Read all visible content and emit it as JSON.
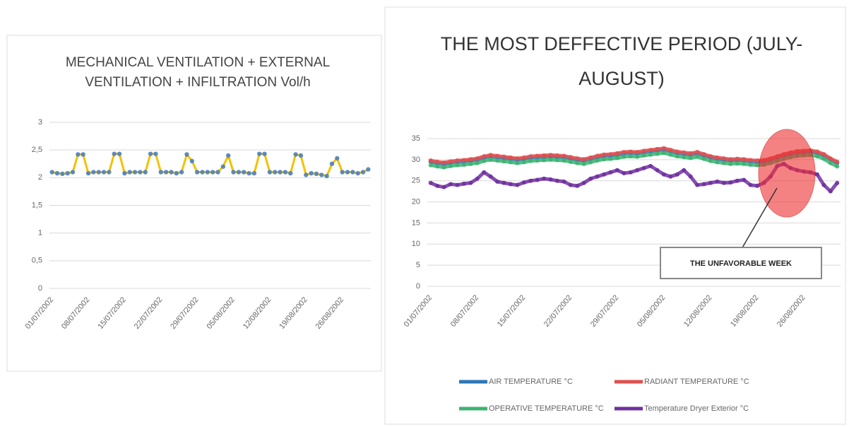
{
  "chart_data": [
    {
      "type": "line",
      "title": "MECHANICAL VENTILATION + EXTERNAL VENTILATION + INFILTRATION Vol/h",
      "categories": [
        "01/07/2002",
        null,
        null,
        null,
        null,
        null,
        null,
        "08/07/2002",
        null,
        null,
        null,
        null,
        null,
        null,
        "15/07/2002",
        null,
        null,
        null,
        null,
        null,
        null,
        "22/07/2002",
        null,
        null,
        null,
        null,
        null,
        null,
        "29/07/2002",
        null,
        null,
        null,
        null,
        null,
        null,
        "05/08/2002",
        null,
        null,
        null,
        null,
        null,
        null,
        "12/08/2002",
        null,
        null,
        null,
        null,
        null,
        null,
        "19/08/2002",
        null,
        null,
        null,
        null,
        null,
        null,
        "26/08/2002",
        null,
        null,
        null,
        null,
        null
      ],
      "series": [
        {
          "color": "#4f81bd",
          "line_color": "#f2c200",
          "values": [
            2.1,
            2.08,
            2.07,
            2.08,
            2.1,
            2.42,
            2.42,
            2.08,
            2.1,
            2.1,
            2.1,
            2.1,
            2.43,
            2.43,
            2.08,
            2.1,
            2.1,
            2.1,
            2.1,
            2.43,
            2.43,
            2.1,
            2.1,
            2.1,
            2.08,
            2.1,
            2.42,
            2.3,
            2.1,
            2.1,
            2.1,
            2.1,
            2.1,
            2.2,
            2.4,
            2.1,
            2.1,
            2.1,
            2.08,
            2.08,
            2.43,
            2.43,
            2.1,
            2.1,
            2.1,
            2.1,
            2.08,
            2.42,
            2.4,
            2.05,
            2.08,
            2.07,
            2.05,
            2.03,
            2.25,
            2.35,
            2.1,
            2.1,
            2.1,
            2.08,
            2.1,
            2.15
          ]
        }
      ],
      "ylim": [
        0,
        3
      ],
      "yticks": [
        0,
        {
          "value": 0.5,
          "label": "0,5"
        },
        1,
        {
          "value": 1.5,
          "label": "1,5"
        },
        2,
        {
          "value": 2.5,
          "label": "2,5"
        },
        3
      ],
      "grid": true
    },
    {
      "type": "line",
      "title": "THE MOST DEFFECTIVE PERIOD (JULY-AUGUST)",
      "categories": [
        "01/07/2002",
        null,
        null,
        null,
        null,
        null,
        null,
        "08/07/2002",
        null,
        null,
        null,
        null,
        null,
        null,
        "15/07/2002",
        null,
        null,
        null,
        null,
        null,
        null,
        "22/07/2002",
        null,
        null,
        null,
        null,
        null,
        null,
        "29/07/2002",
        null,
        null,
        null,
        null,
        null,
        null,
        "05/08/2002",
        null,
        null,
        null,
        null,
        null,
        null,
        "12/08/2002",
        null,
        null,
        null,
        null,
        null,
        null,
        "19/08/2002",
        null,
        null,
        null,
        null,
        null,
        null,
        "26/08/2002",
        null,
        null,
        null,
        null,
        null
      ],
      "series": [
        {
          "name": "AIR TEMPERATURE °C",
          "color": "#2e75b6",
          "values": [
            29.5,
            29.2,
            29.0,
            29.3,
            29.5,
            29.6,
            29.8,
            30.0,
            30.5,
            30.8,
            30.6,
            30.4,
            30.2,
            30.0,
            30.2,
            30.5,
            30.6,
            30.7,
            30.8,
            30.7,
            30.6,
            30.3,
            30.0,
            29.8,
            30.2,
            30.6,
            30.9,
            31.0,
            31.2,
            31.5,
            31.6,
            31.5,
            31.8,
            32.0,
            32.2,
            32.4,
            32.0,
            31.6,
            31.4,
            31.2,
            31.5,
            31.0,
            30.5,
            30.2,
            30.0,
            29.8,
            29.9,
            29.8,
            29.6,
            29.5,
            29.6,
            30.0,
            30.5,
            31.0,
            31.4,
            31.7,
            31.8,
            31.9,
            31.6,
            31.0,
            30.0,
            29.2
          ]
        },
        {
          "name": "RADIANT TEMPERATURE °C",
          "color": "#e05050",
          "values": [
            29.8,
            29.5,
            29.3,
            29.6,
            29.8,
            29.9,
            30.1,
            30.3,
            30.8,
            31.1,
            30.9,
            30.7,
            30.5,
            30.3,
            30.5,
            30.8,
            30.9,
            31.0,
            31.1,
            31.0,
            30.9,
            30.6,
            30.3,
            30.1,
            30.5,
            30.9,
            31.2,
            31.3,
            31.5,
            31.8,
            31.9,
            31.8,
            32.1,
            32.3,
            32.5,
            32.7,
            32.3,
            31.9,
            31.7,
            31.5,
            31.8,
            31.3,
            30.8,
            30.5,
            30.3,
            30.1,
            30.2,
            30.1,
            29.9,
            29.8,
            29.9,
            30.3,
            30.8,
            31.3,
            31.7,
            32.0,
            32.1,
            32.2,
            31.9,
            31.3,
            30.3,
            29.5
          ]
        },
        {
          "name": "OPERATIVE TEMPERATURE °C",
          "color": "#3cb371",
          "values": [
            28.7,
            28.4,
            28.2,
            28.5,
            28.7,
            28.8,
            29.0,
            29.2,
            29.7,
            30.0,
            29.8,
            29.6,
            29.4,
            29.2,
            29.4,
            29.7,
            29.8,
            29.9,
            30.0,
            29.9,
            29.8,
            29.5,
            29.2,
            29.0,
            29.4,
            29.8,
            30.1,
            30.2,
            30.4,
            30.7,
            30.8,
            30.7,
            31.0,
            31.2,
            31.4,
            31.6,
            31.2,
            30.8,
            30.6,
            30.4,
            30.7,
            30.2,
            29.7,
            29.4,
            29.2,
            29.0,
            29.1,
            29.0,
            28.8,
            28.7,
            28.8,
            29.2,
            29.7,
            30.2,
            30.6,
            30.9,
            31.0,
            31.1,
            30.8,
            30.2,
            29.2,
            28.4
          ]
        },
        {
          "name": "Temperature Dryer Exterior °C",
          "color": "#7030a0",
          "values": [
            24.5,
            23.8,
            23.5,
            24.2,
            24.0,
            24.3,
            24.5,
            25.5,
            27.0,
            26.0,
            24.8,
            24.5,
            24.2,
            24.0,
            24.6,
            25.0,
            25.2,
            25.5,
            25.3,
            25.0,
            24.8,
            24.0,
            23.8,
            24.5,
            25.5,
            26.0,
            26.5,
            27.0,
            27.5,
            26.8,
            27.0,
            27.5,
            28.0,
            28.5,
            27.5,
            26.5,
            26.0,
            26.5,
            27.5,
            26.0,
            24.0,
            24.2,
            24.5,
            24.8,
            24.5,
            24.6,
            25.0,
            25.2,
            24.0,
            23.8,
            24.5,
            26.0,
            28.5,
            29.0,
            28.0,
            27.5,
            27.2,
            27.0,
            26.5,
            24.0,
            22.5,
            24.5
          ]
        }
      ],
      "ylim": [
        0,
        35
      ],
      "yticks": [
        0,
        5,
        10,
        15,
        20,
        25,
        30,
        35
      ],
      "grid": true,
      "legend": "bottom",
      "annotation": "THE UNFAVORABLE WEEK"
    }
  ]
}
